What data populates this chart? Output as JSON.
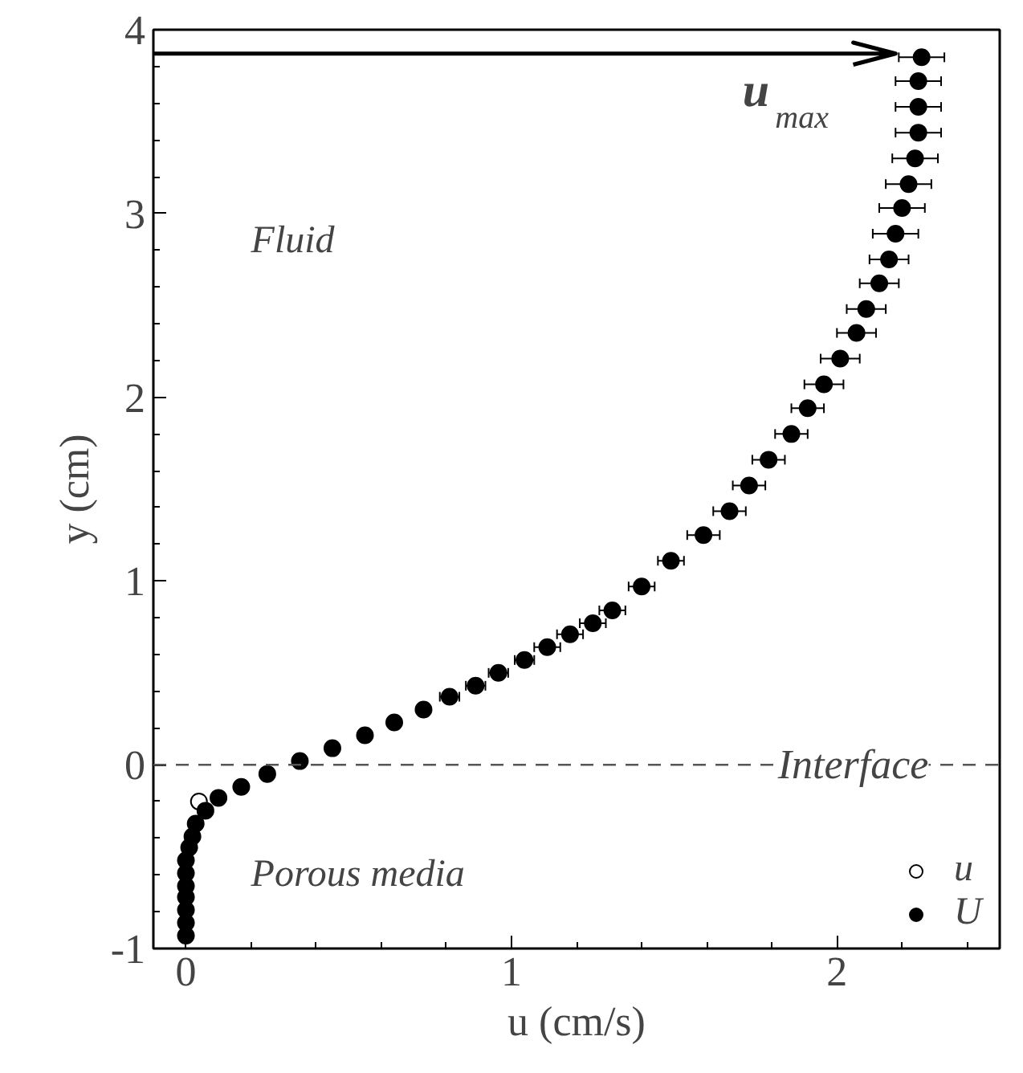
{
  "chart_data": {
    "type": "scatter",
    "xlabel": "u (cm/s)",
    "ylabel": "y (cm)",
    "xlim": [
      -0.1,
      2.5
    ],
    "ylim": [
      -1,
      4
    ],
    "xticks": [
      0,
      1,
      2
    ],
    "yticks": [
      -1,
      0,
      1,
      2,
      3,
      4
    ],
    "legend": "bottom right",
    "grid": false,
    "marker": "circle",
    "series": [
      {
        "name": "u",
        "color": "#ffffff",
        "x": [
          0.04
        ],
        "values": [
          -0.2
        ]
      },
      {
        "name": "U",
        "color": "#000000",
        "x": [
          2.26,
          2.25,
          2.25,
          2.25,
          2.24,
          2.22,
          2.2,
          2.18,
          2.16,
          2.13,
          2.09,
          2.06,
          2.01,
          1.96,
          1.91,
          1.86,
          1.79,
          1.73,
          1.67,
          1.59,
          1.49,
          1.4,
          1.31,
          1.25,
          1.18,
          1.11,
          1.04,
          0.96,
          0.89,
          0.81,
          0.73,
          0.64,
          0.55,
          0.45,
          0.35,
          0.25,
          0.17,
          0.1,
          0.06,
          0.03,
          0.02,
          0.01,
          0,
          0,
          0,
          0,
          0,
          0,
          0
        ],
        "values": [
          3.85,
          3.72,
          3.58,
          3.44,
          3.3,
          3.16,
          3.03,
          2.89,
          2.75,
          2.62,
          2.48,
          2.35,
          2.21,
          2.07,
          1.94,
          1.8,
          1.66,
          1.52,
          1.38,
          1.25,
          1.11,
          0.97,
          0.84,
          0.77,
          0.71,
          0.64,
          0.57,
          0.5,
          0.43,
          0.37,
          0.3,
          0.23,
          0.16,
          0.09,
          0.02,
          -0.05,
          -0.12,
          -0.18,
          -0.25,
          -0.32,
          -0.39,
          -0.45,
          -0.52,
          -0.59,
          -0.66,
          -0.72,
          -0.79,
          -0.86,
          -0.93
        ],
        "xerrors": [
          0.07,
          0.07,
          0.07,
          0.07,
          0.07,
          0.07,
          0.07,
          0.07,
          0.06,
          0.06,
          0.06,
          0.06,
          0.06,
          0.06,
          0.05,
          0.05,
          0.05,
          0.05,
          0.05,
          0.05,
          0.04,
          0.04,
          0.04,
          0.04,
          0.04,
          0.04,
          0.03,
          0.03,
          0.03,
          0.03,
          null,
          null,
          null,
          null,
          null,
          null,
          null,
          null,
          null,
          null,
          null,
          null,
          null,
          null,
          null,
          null,
          null,
          null,
          null
        ]
      }
    ],
    "ref_lines": [
      {
        "axis": "y",
        "value": 0,
        "label": "Interface",
        "line_style": "dashed",
        "color": "#555555"
      },
      {
        "axis": "y",
        "value": 3.87,
        "label": "u$_{max}$",
        "line_style": "solid",
        "color": "#000000"
      }
    ],
    "annotations": [
      "Fluid",
      "Porous media"
    ]
  }
}
